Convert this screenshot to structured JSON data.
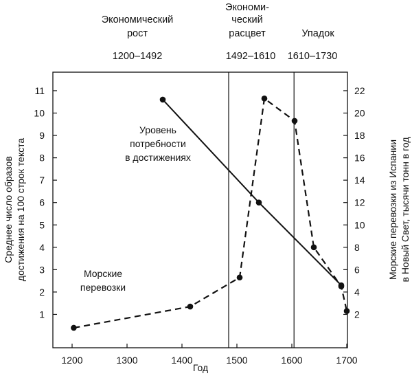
{
  "chart_data": {
    "type": "line",
    "xlabel": "Год",
    "xlim": [
      1180,
      1720
    ],
    "xticks": [
      1200,
      1300,
      1400,
      1500,
      1600,
      1700
    ],
    "left_axis": {
      "label_lines": [
        "Среднее число образов",
        "достижения на 100 строк текста"
      ],
      "ylim": [
        0,
        12
      ],
      "ticks": [
        1,
        2,
        3,
        4,
        5,
        6,
        7,
        8,
        9,
        10,
        11
      ]
    },
    "right_axis": {
      "label_lines": [
        "Морские перевозки из Испании",
        "в Новый Свет, тысячи тонн в год"
      ],
      "ylim": [
        0,
        24
      ],
      "ticks": [
        2,
        4,
        6,
        8,
        10,
        12,
        14,
        16,
        18,
        20,
        22
      ]
    },
    "dividers": [
      1485,
      1604
    ],
    "periods": [
      {
        "name_lines": [
          "Экономический",
          "рост"
        ],
        "range": "1200–1492"
      },
      {
        "name_lines": [
          "Экономи-",
          "ческий",
          "расцвет"
        ],
        "range": "1492–1610"
      },
      {
        "name_lines": [
          "Упадок"
        ],
        "range": "1610–1730"
      }
    ],
    "series": [
      {
        "name": "Уровень потребности в достижениях",
        "label_lines": [
          "Уровень",
          "потребности",
          "в достижениях"
        ],
        "axis": "left",
        "style": "solid",
        "x": [
          1365,
          1540,
          1690
        ],
        "y": [
          10.6,
          6.0,
          2.3
        ]
      },
      {
        "name": "Морские перевозки",
        "label_lines": [
          "Морские",
          "перевозки"
        ],
        "axis": "right",
        "style": "dashed",
        "x": [
          1203,
          1415,
          1505,
          1550,
          1605,
          1640,
          1690,
          1700
        ],
        "y": [
          0.8,
          2.7,
          5.3,
          21.3,
          19.3,
          8.0,
          4.5,
          2.3
        ]
      }
    ]
  }
}
